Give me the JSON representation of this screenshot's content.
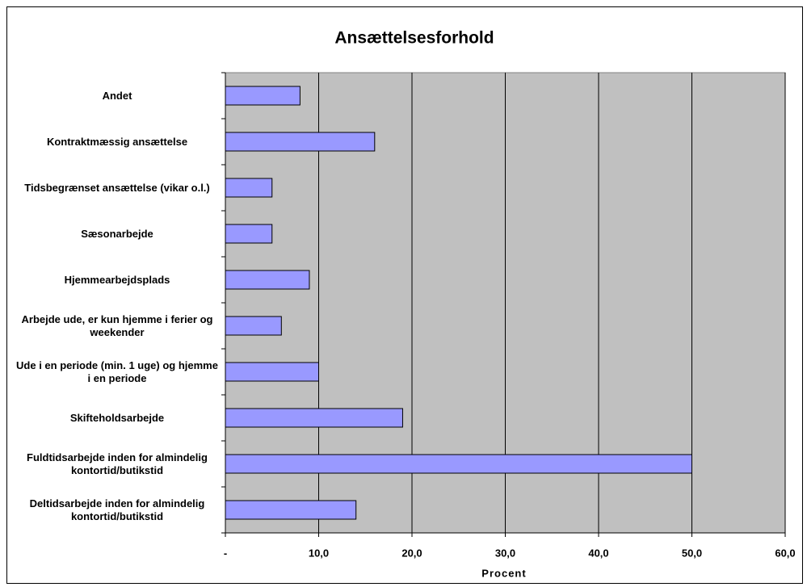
{
  "chart_data": {
    "type": "barh",
    "title": "Ansættelsesforhold",
    "xlabel": "Procent",
    "categories": [
      "Andet",
      "Kontraktmæssig ansættelse",
      "Tidsbegrænset ansættelse (vikar o.l.)",
      "Sæsonarbejde",
      "Hjemmearbejdsplads",
      "Arbejde ude, er kun hjemme i ferier og weekender",
      "Ude i en periode (min. 1 uge) og hjemme i en periode",
      "Skifteholdsarbejde",
      "Fuldtidsarbejde inden for almindelig kontortid/butikstid",
      "Deltidsarbejde inden for almindelig kontortid/butikstid"
    ],
    "values": [
      8,
      16,
      5,
      5,
      9,
      6,
      10,
      19,
      50,
      14
    ],
    "color": "#9999ff",
    "background": "#c0c0c0",
    "grid": true,
    "xlim": [
      0,
      60
    ],
    "xticks": [
      {
        "value": 0,
        "label": "-"
      },
      {
        "value": 10,
        "label": "10,0"
      },
      {
        "value": 20,
        "label": "20,0"
      },
      {
        "value": 30,
        "label": "30,0"
      },
      {
        "value": 40,
        "label": "40,0"
      },
      {
        "value": 50,
        "label": "50,0"
      },
      {
        "value": 60,
        "label": "60,0"
      }
    ]
  }
}
